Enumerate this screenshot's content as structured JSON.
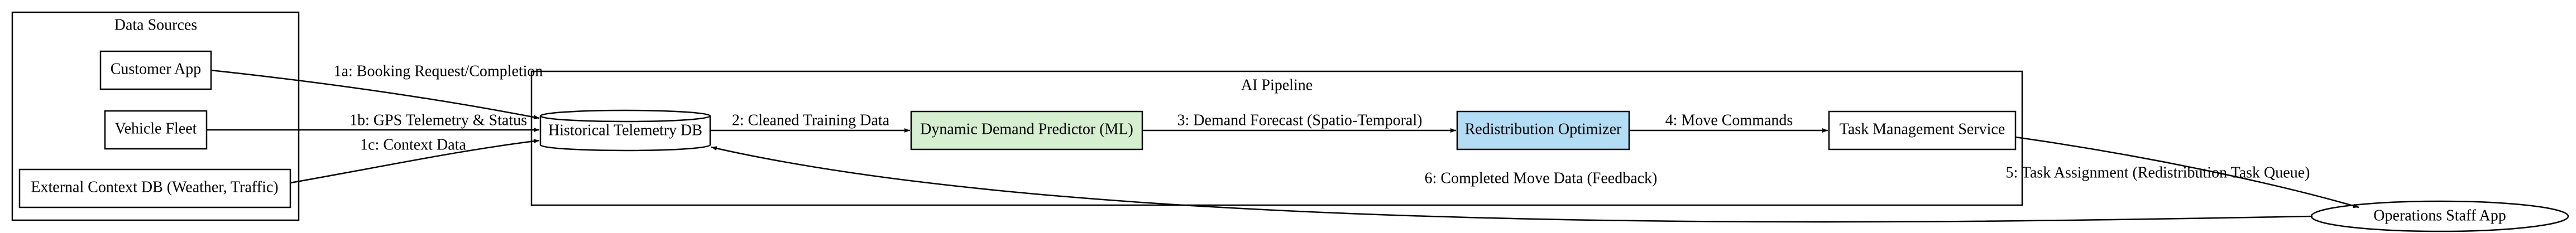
{
  "clusters": [
    {
      "label": "Data Sources"
    },
    {
      "label": "AI Pipeline"
    }
  ],
  "nodes": [
    {
      "label": "Customer App"
    },
    {
      "label": "Vehicle Fleet"
    },
    {
      "label": "External Context DB (Weather, Traffic)"
    },
    {
      "label": "Historical Telemetry DB"
    },
    {
      "label": "Dynamic Demand Predictor (ML)"
    },
    {
      "label": "Redistribution Optimizer"
    },
    {
      "label": "Task Management Service"
    },
    {
      "label": "Operations Staff App"
    }
  ],
  "edges": [
    {
      "label": "1a: Booking Request/Completion"
    },
    {
      "label": "1b: GPS Telemetry & Status"
    },
    {
      "label": "1c: Context Data"
    },
    {
      "label": "2: Cleaned Training Data"
    },
    {
      "label": "3: Demand Forecast (Spatio-Temporal)"
    },
    {
      "label": "4: Move Commands"
    },
    {
      "label": "5: Task Assignment (Redistribution Task Queue)"
    },
    {
      "label": "6: Completed Move Data (Feedback)"
    }
  ]
}
